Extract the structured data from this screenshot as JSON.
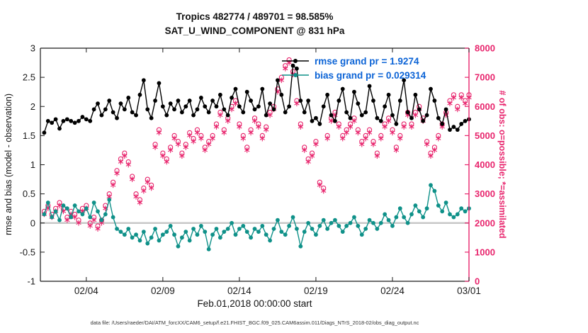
{
  "colors": {
    "rmse": "#000000",
    "bias": "#0F9189",
    "obs": "#E8256D",
    "legend_text": "#0B63D6",
    "zero_line": "#C8C8C8",
    "axis": "#1a1a1a"
  },
  "footer": {
    "datafile": "data file: /Users/raeder/DAI/ATM_forcXX/CAM6_setup/f.e21.FHIST_BGC.f09_025.CAM6assim.011/Diags_NTrS_2018-02/obs_diag_output.nc"
  },
  "chart_data": {
    "type": "line",
    "title": "Tropics 482774 / 489701 = 98.585%",
    "subtitle": "SAT_U_WIND_COMPONENT @ 831 hPa",
    "xlabel": "Feb.01,2018 00:00:00 start",
    "ylabel_left": "rmse and bias (model - observation)",
    "ylabel_right": "# of obs: o=possible; *=assimilated",
    "x_range_days": [
      0,
      28
    ],
    "x_tick_days": [
      3,
      8,
      13,
      18,
      23,
      28
    ],
    "x_tick_labels": [
      "02/04",
      "02/09",
      "02/14",
      "02/19",
      "02/24",
      "03/01"
    ],
    "ylim_left": [
      -1,
      3
    ],
    "ylim_right": [
      0,
      8000
    ],
    "left_ticks": [
      3,
      2.5,
      2,
      1.5,
      1,
      0.5,
      0,
      -0.5,
      -1
    ],
    "right_ticks": [
      0,
      1000,
      2000,
      3000,
      4000,
      5000,
      6000,
      7000,
      8000
    ],
    "zero_line": true,
    "x_start_day": 0.25,
    "x_step_days": 0.25,
    "legend": [
      {
        "series": "rmse",
        "label": "rmse grand pr = 1.9274"
      },
      {
        "series": "bias",
        "label": "bias grand pr = 0.029314"
      }
    ],
    "series": [
      {
        "name": "obs_possible",
        "axis": "right",
        "marker": "circle",
        "line": false,
        "color_key": "obs",
        "values": [
          2400,
          2600,
          2300,
          2500,
          2700,
          2500,
          2200,
          2400,
          2300,
          2100,
          2500,
          2600,
          2000,
          2200,
          1900,
          2100,
          2600,
          3000,
          3400,
          3800,
          4200,
          4400,
          4100,
          3600,
          3000,
          2800,
          3200,
          3500,
          3300,
          4700,
          5200,
          4400,
          4200,
          4600,
          5000,
          4800,
          4400,
          4700,
          5100,
          4900,
          5200,
          5000,
          4600,
          4800,
          5000,
          5400,
          5800,
          5200,
          5600,
          6000,
          6200,
          5400,
          5000,
          4600,
          5200,
          5600,
          5400,
          5000,
          5300,
          5800,
          6000,
          6600,
          7000,
          7400,
          7600,
          7200,
          6200,
          5400,
          4600,
          4200,
          4400,
          4800,
          3400,
          3200,
          5000,
          5600,
          5800,
          5400,
          5000,
          5200,
          5400,
          5600,
          5200,
          4800,
          5000,
          5200,
          4800,
          4400,
          5000,
          5400,
          5600,
          5200,
          4600,
          5000,
          5400,
          5800,
          5400,
          5800,
          6000,
          5600,
          4800,
          4400,
          4600,
          5000,
          5400,
          5800,
          6200,
          6400,
          6000,
          6400,
          6200,
          6400
        ]
      },
      {
        "name": "obs_assimilated",
        "axis": "right",
        "marker": "asterisk",
        "line": false,
        "color_key": "obs",
        "values": [
          2300,
          2500,
          2200,
          2400,
          2600,
          2400,
          2100,
          2300,
          2200,
          2000,
          2400,
          2500,
          1900,
          2100,
          1800,
          2000,
          2500,
          2900,
          3300,
          3700,
          4100,
          4300,
          4000,
          3500,
          2900,
          2700,
          3100,
          3400,
          3200,
          4600,
          5100,
          4300,
          4100,
          4500,
          4900,
          4700,
          4300,
          4600,
          5000,
          4800,
          5100,
          4900,
          4500,
          4700,
          4900,
          5300,
          5700,
          5100,
          5500,
          5900,
          6100,
          5300,
          4900,
          4500,
          5100,
          5500,
          5300,
          4900,
          5200,
          5700,
          5900,
          6500,
          6900,
          7300,
          7500,
          7100,
          6100,
          5300,
          4500,
          4100,
          4300,
          4700,
          3300,
          3100,
          4900,
          5500,
          5700,
          5300,
          4900,
          5100,
          5300,
          5500,
          5100,
          4700,
          4900,
          5100,
          4700,
          4300,
          4900,
          5300,
          5500,
          5100,
          4500,
          4900,
          5300,
          5700,
          5300,
          5700,
          5900,
          5500,
          4700,
          4300,
          4500,
          4900,
          5300,
          5700,
          6100,
          6300,
          5900,
          6300,
          6100,
          6300
        ]
      },
      {
        "name": "bias",
        "axis": "left",
        "marker": "filled-circle",
        "color_key": "bias",
        "values": [
          0.15,
          0.35,
          0.1,
          0.2,
          0.05,
          0.3,
          0.25,
          0.1,
          0.3,
          0.2,
          0.15,
          0.25,
          0.1,
          0.35,
          0.2,
          0.05,
          0.15,
          0.4,
          0.1,
          -0.1,
          -0.15,
          -0.2,
          -0.1,
          -0.25,
          -0.2,
          -0.3,
          -0.15,
          -0.35,
          -0.25,
          -0.1,
          -0.3,
          -0.2,
          -0.15,
          -0.05,
          -0.2,
          -0.4,
          -0.25,
          -0.15,
          -0.3,
          -0.1,
          -0.2,
          -0.05,
          -0.15,
          -0.45,
          -0.2,
          -0.1,
          -0.25,
          -0.15,
          -0.1,
          0.0,
          -0.2,
          -0.1,
          -0.05,
          -0.15,
          -0.25,
          -0.1,
          -0.15,
          -0.05,
          -0.2,
          -0.3,
          -0.1,
          0.05,
          -0.15,
          -0.2,
          -0.05,
          0.1,
          -0.1,
          -0.4,
          -0.15,
          0.0,
          -0.1,
          -0.2,
          -0.05,
          0.05,
          -0.1,
          0.0,
          0.05,
          -0.05,
          -0.15,
          -0.05,
          0.0,
          0.1,
          -0.05,
          -0.2,
          -0.1,
          0.05,
          0.0,
          -0.1,
          0.0,
          0.15,
          0.05,
          -0.05,
          0.1,
          0.25,
          0.1,
          0.0,
          0.15,
          0.3,
          0.2,
          0.1,
          0.25,
          0.65,
          0.55,
          0.3,
          0.2,
          0.35,
          0.15,
          0.1,
          0.15,
          0.25,
          0.2,
          0.25
        ]
      },
      {
        "name": "rmse",
        "axis": "left",
        "marker": "filled-circle",
        "color_key": "rmse",
        "values": [
          1.55,
          1.75,
          1.72,
          1.78,
          1.62,
          1.75,
          1.78,
          1.75,
          1.72,
          1.75,
          1.82,
          1.78,
          1.75,
          1.95,
          2.05,
          1.85,
          1.95,
          2.1,
          1.9,
          1.8,
          2.05,
          1.95,
          2.15,
          1.9,
          1.85,
          2.2,
          2.45,
          1.95,
          1.8,
          2.1,
          2.4,
          2.0,
          1.85,
          2.05,
          1.95,
          2.1,
          1.9,
          2.0,
          2.1,
          1.85,
          1.95,
          2.15,
          2.0,
          1.9,
          2.1,
          2.0,
          2.2,
          1.95,
          1.85,
          2.15,
          2.3,
          2.0,
          1.9,
          2.25,
          2.1,
          1.95,
          2.0,
          2.3,
          1.85,
          2.05,
          1.95,
          2.45,
          2.2,
          1.9,
          2.0,
          2.7,
          2.65,
          2.1,
          1.9,
          2.1,
          1.75,
          1.8,
          1.7,
          2.0,
          2.2,
          1.85,
          1.75,
          2.1,
          2.3,
          1.9,
          1.8,
          2.25,
          2.05,
          1.85,
          1.9,
          2.35,
          2.1,
          1.8,
          1.75,
          2.0,
          2.2,
          1.85,
          1.7,
          2.1,
          2.45,
          1.9,
          1.8,
          2.2,
          1.95,
          1.75,
          1.85,
          2.3,
          2.1,
          1.8,
          1.7,
          1.95,
          1.6,
          1.65,
          1.6,
          1.7,
          1.75,
          1.78
        ]
      }
    ]
  }
}
